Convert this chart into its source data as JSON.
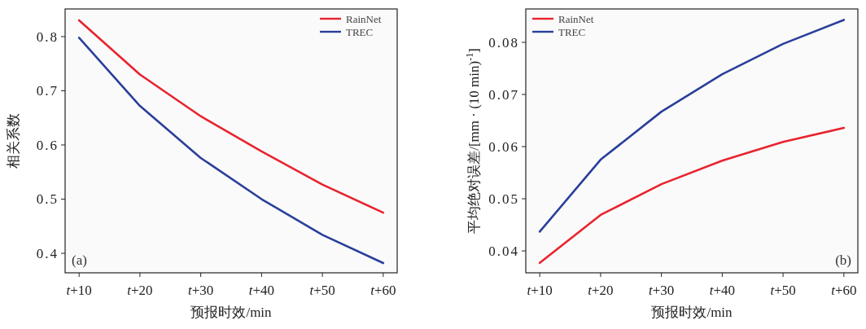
{
  "chart_data": [
    {
      "type": "line",
      "categories": [
        "t+10",
        "t+20",
        "t+30",
        "t+40",
        "t+50",
        "t+60"
      ],
      "xlabel": "预报时效/min",
      "ylabel": "相关系数",
      "ylim": [
        0.364,
        0.851
      ],
      "yticks": [
        0.4,
        0.5,
        0.6,
        0.7,
        0.8
      ],
      "legend": "top right",
      "grid": false,
      "annotations": [
        "(a)"
      ],
      "series": [
        {
          "name": "RainNet",
          "color": "#e8232e",
          "values": [
            0.83,
            0.73,
            0.653,
            0.588,
            0.527,
            0.475
          ]
        },
        {
          "name": "TREC",
          "color": "#2a3f9a",
          "values": [
            0.798,
            0.672,
            0.576,
            0.5,
            0.434,
            0.382
          ]
        }
      ]
    },
    {
      "type": "line",
      "categories": [
        "t+10",
        "t+20",
        "t+30",
        "t+40",
        "t+50",
        "t+60"
      ],
      "xlabel": "预报时效/min",
      "ylabel": "平均绝对误差/[mm · (10 min)$^{-1}$]",
      "ylim": [
        0.0358,
        0.0864
      ],
      "yticks": [
        0.04,
        0.05,
        0.06,
        0.07,
        0.08
      ],
      "legend": "top left",
      "grid": false,
      "annotations": [
        "(b)"
      ],
      "series": [
        {
          "name": "RainNet",
          "color": "#e8232e",
          "values": [
            0.0377,
            0.0469,
            0.0528,
            0.0573,
            0.0609,
            0.0636
          ]
        },
        {
          "name": "TREC",
          "color": "#2a3f9a",
          "values": [
            0.0437,
            0.0575,
            0.0667,
            0.0739,
            0.0797,
            0.0843
          ]
        }
      ]
    }
  ]
}
